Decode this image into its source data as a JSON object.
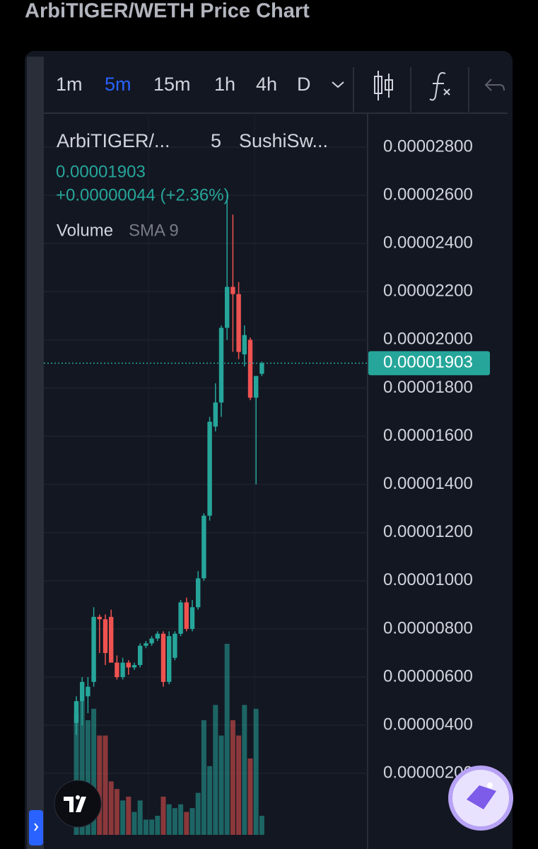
{
  "page_title": "ArbiTIGER/WETH Price Chart",
  "toolbar": {
    "intervals": [
      "1m",
      "5m",
      "15m",
      "1h",
      "4h",
      "D"
    ]
  },
  "legend": {
    "symbol": "ArbiTIGER/...",
    "interval": "5",
    "exchange": "SushiSw...",
    "change": "+0.00000044 (+2.36%)",
    "volume_label": "Volume",
    "volume_sma": "SMA 9"
  },
  "chart_data": {
    "type": "candlestick",
    "open": [
      4.1e-06,
      5e-06,
      5.2e-06,
      5.8e-06,
      8.5e-06,
      8.4e-06,
      8.5e-06,
      6.6e-06,
      6e-06,
      6.6e-06,
      6.4e-06,
      6.5e-06,
      7.3e-06,
      7.4e-06,
      7.6e-06,
      7.8e-06,
      5.8e-06,
      6.8e-06,
      7.8e-06,
      9.1e-06,
      8e-06,
      8.9e-06,
      1.01e-05,
      1.27e-05,
      1.64e-05,
      1.74e-05,
      2.05e-05,
      2.22e-05,
      2.19e-05,
      1.94e-05,
      2e-05,
      1.76e-05,
      1.859e-05
    ],
    "high": [
      5.2e-06,
      6e-06,
      6e-06,
      8.9e-06,
      8.6e-06,
      8.6e-06,
      8.8e-06,
      6.9e-06,
      6.8e-06,
      6.7e-06,
      6.6e-06,
      7.4e-06,
      7.5e-06,
      7.7e-06,
      7.9e-06,
      7.9e-06,
      7.9e-06,
      7.9e-06,
      9.2e-06,
      9.3e-06,
      9.2e-06,
      1.04e-05,
      1.28e-05,
      1.68e-05,
      1.82e-05,
      2.06e-05,
      2.6e-05,
      2.52e-05,
      2.24e-05,
      2.06e-05,
      2.01e-05,
      1.85e-05,
      1.91e-05
    ],
    "low": [
      3.6e-06,
      4e-06,
      4.5e-06,
      5.6e-06,
      7e-06,
      6.5e-06,
      6.7e-06,
      5.9e-06,
      5.9e-06,
      6.1e-06,
      6.3e-06,
      6.4e-06,
      7.2e-06,
      7.3e-06,
      7.5e-06,
      5.6e-06,
      5.7e-06,
      6.7e-06,
      7.7e-06,
      7.9e-06,
      7.9e-06,
      8.8e-06,
      1e-05,
      1.25e-05,
      1.62e-05,
      1.68e-05,
      2e-05,
      1.95e-05,
      1.92e-05,
      1.89e-05,
      1.75e-05,
      1.4e-05,
      1.85e-05
    ],
    "close": [
      5e-06,
      5.8e-06,
      5.6e-06,
      8.5e-06,
      8.4e-06,
      7e-06,
      6.6e-06,
      6e-06,
      6.6e-06,
      6.4e-06,
      6.5e-06,
      7.3e-06,
      7.4e-06,
      7.6e-06,
      7.8e-06,
      5.8e-06,
      7.7e-06,
      7.8e-06,
      9.1e-06,
      8e-06,
      8.9e-06,
      1.01e-05,
      1.27e-05,
      1.66e-05,
      1.74e-05,
      2.05e-05,
      2.22e-05,
      2.19e-05,
      1.95e-05,
      2.02e-05,
      1.76e-05,
      1.85e-05,
      1.903e-05
    ],
    "volume": [
      160,
      175,
      150,
      165,
      130,
      130,
      70,
      60,
      45,
      50,
      30,
      45,
      20,
      20,
      25,
      50,
      40,
      35,
      40,
      30,
      35,
      55,
      150,
      90,
      170,
      130,
      250,
      150,
      130,
      170,
      100,
      165,
      25
    ],
    "up_color": "#26a69a",
    "down_color": "#ef5350",
    "ylim": [
      -5.5e-07,
      2.941e-05
    ],
    "yticks": [
      {
        "value": 2.8e-05,
        "label": "0.00002800"
      },
      {
        "value": 2.6e-05,
        "label": "0.00002600"
      },
      {
        "value": 2.4e-05,
        "label": "0.00002400"
      },
      {
        "value": 2.2e-05,
        "label": "0.00002200"
      },
      {
        "value": 2e-05,
        "label": "0.00002000"
      },
      {
        "value": 1.8e-05,
        "label": "0.00001800"
      },
      {
        "value": 1.6e-05,
        "label": "0.00001600"
      },
      {
        "value": 1.4e-05,
        "label": "0.00001400"
      },
      {
        "value": 1.2e-05,
        "label": "0.00001200"
      },
      {
        "value": 1e-05,
        "label": "0.00001000"
      },
      {
        "value": 8e-06,
        "label": "0.00000800"
      },
      {
        "value": 6e-06,
        "label": "0.00000600"
      },
      {
        "value": 4e-06,
        "label": "0.00000400"
      },
      {
        "value": 2e-06,
        "label": "0.00000200"
      }
    ],
    "last_price": {
      "value": 1.903e-05,
      "label": "0.00001903"
    },
    "grid": true
  }
}
